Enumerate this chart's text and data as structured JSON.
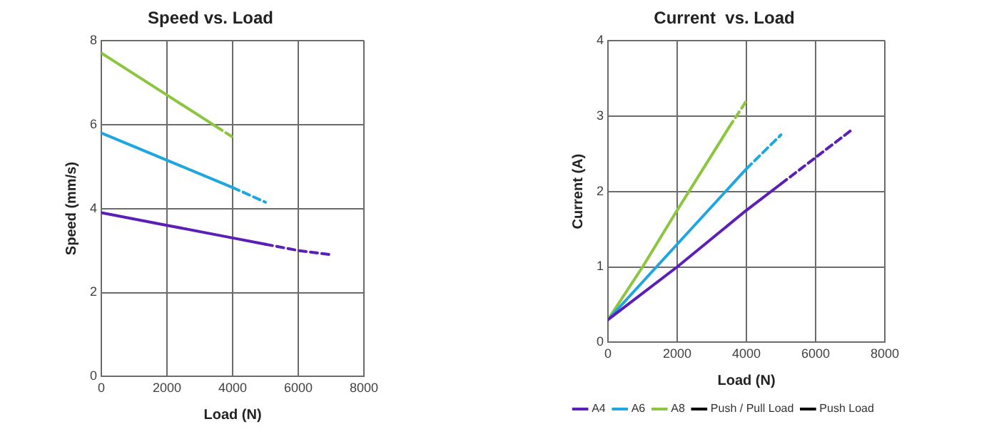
{
  "chart_data": [
    {
      "type": "line",
      "title": "Speed vs. Load",
      "xlabel": "Load (N)",
      "ylabel": "Speed (mm/s)",
      "xlim": [
        0,
        8000
      ],
      "xticks": [
        0,
        2000,
        4000,
        6000,
        8000
      ],
      "ylim": [
        0,
        8
      ],
      "yticks": [
        0,
        2,
        4,
        6,
        8
      ],
      "grid": true,
      "legend": false,
      "marker": "none",
      "series": [
        {
          "color": "#5b1fb8",
          "line_style": "solid",
          "x": [
            0,
            2000,
            4000,
            5000
          ],
          "values": [
            3.9,
            3.6,
            3.3,
            3.15
          ]
        },
        {
          "color": "#5b1fb8",
          "line_style": "dashed",
          "x": [
            5000,
            6000,
            7000
          ],
          "values": [
            3.15,
            3.0,
            2.9
          ]
        },
        {
          "color": "#1ea6e0",
          "line_style": "solid",
          "x": [
            0,
            2000,
            4000
          ],
          "values": [
            5.8,
            5.15,
            4.5
          ]
        },
        {
          "color": "#1ea6e0",
          "line_style": "dashed",
          "x": [
            4000,
            5000
          ],
          "values": [
            4.5,
            4.15
          ]
        },
        {
          "color": "#8cc63e",
          "line_style": "solid",
          "x": [
            0,
            2000,
            3500
          ],
          "values": [
            7.7,
            6.7,
            5.95
          ]
        },
        {
          "color": "#8cc63e",
          "line_style": "dashed",
          "x": [
            3500,
            4000
          ],
          "values": [
            5.95,
            5.7
          ]
        }
      ]
    },
    {
      "type": "line",
      "title": "Current  vs. Load",
      "xlabel": "Load (N)",
      "ylabel": "Current (A)",
      "xlim": [
        0,
        8000
      ],
      "xticks": [
        0,
        2000,
        4000,
        6000,
        8000
      ],
      "ylim": [
        0,
        4
      ],
      "yticks": [
        0,
        1,
        2,
        3,
        4
      ],
      "grid": true,
      "legend": "bottom",
      "marker": "none",
      "series": [
        {
          "name": "A4",
          "color": "#5b1fb8",
          "line_style": "solid",
          "x": [
            0,
            2000,
            4000,
            5000
          ],
          "values": [
            0.3,
            1.0,
            1.75,
            2.1
          ]
        },
        {
          "color": "#5b1fb8",
          "line_style": "dashed",
          "x": [
            5000,
            7000
          ],
          "values": [
            2.1,
            2.8
          ]
        },
        {
          "name": "A6",
          "color": "#1ea6e0",
          "line_style": "solid",
          "x": [
            0,
            2000,
            4000
          ],
          "values": [
            0.3,
            1.3,
            2.3
          ]
        },
        {
          "color": "#1ea6e0",
          "line_style": "dashed",
          "x": [
            4000,
            5000
          ],
          "values": [
            2.3,
            2.75
          ]
        },
        {
          "name": "A8",
          "color": "#8cc63e",
          "line_style": "solid",
          "x": [
            0,
            1000,
            2000,
            3500
          ],
          "values": [
            0.3,
            1.0,
            1.75,
            2.85
          ]
        },
        {
          "color": "#8cc63e",
          "line_style": "dashed",
          "x": [
            3500,
            4000
          ],
          "values": [
            2.85,
            3.2
          ]
        },
        {
          "name": "Push / Pull Load",
          "color": "#000000",
          "line_style": "solid"
        },
        {
          "name": "Push Load",
          "color": "#000000",
          "line_style": "dashed"
        }
      ]
    }
  ]
}
